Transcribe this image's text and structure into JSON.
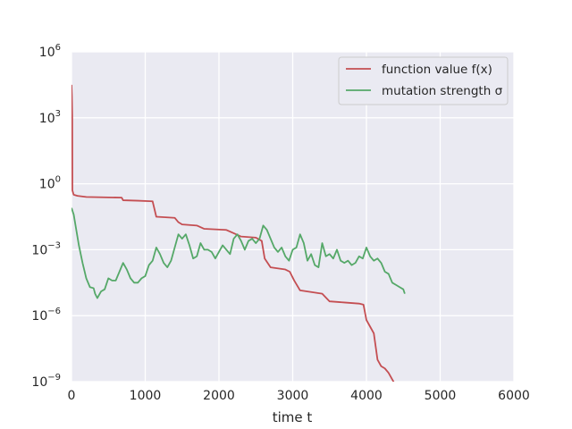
{
  "chart_data": {
    "type": "line",
    "title": "",
    "xlabel": "time t",
    "ylabel": "",
    "xlim": [
      0,
      6000
    ],
    "ylim_log10": [
      -9,
      6
    ],
    "yscale": "log",
    "grid": true,
    "legend_position": "top-right",
    "x_ticks": [
      {
        "value": 0,
        "label": "0"
      },
      {
        "value": 1000,
        "label": "1000"
      },
      {
        "value": 2000,
        "label": "2000"
      },
      {
        "value": 3000,
        "label": "3000"
      },
      {
        "value": 4000,
        "label": "4000"
      },
      {
        "value": 5000,
        "label": "5000"
      },
      {
        "value": 6000,
        "label": "6000"
      }
    ],
    "y_ticks": [
      {
        "exp": -9,
        "base": "10",
        "sup": "−9"
      },
      {
        "exp": -6,
        "base": "10",
        "sup": "−6"
      },
      {
        "exp": -3,
        "base": "10",
        "sup": "−3"
      },
      {
        "exp": 0,
        "base": "10",
        "sup": "0"
      },
      {
        "exp": 3,
        "base": "10",
        "sup": "3"
      },
      {
        "exp": 6,
        "base": "10",
        "sup": "6"
      }
    ],
    "series": [
      {
        "name": "function value f(x)",
        "color": "#c44e52",
        "points": [
          [
            0,
            4.5
          ],
          [
            5,
            4.0
          ],
          [
            10,
            3.0
          ],
          [
            12,
            -0.3
          ],
          [
            25,
            -0.45
          ],
          [
            30,
            -0.5
          ],
          [
            80,
            -0.55
          ],
          [
            200,
            -0.6
          ],
          [
            500,
            -0.62
          ],
          [
            680,
            -0.63
          ],
          [
            700,
            -0.75
          ],
          [
            900,
            -0.77
          ],
          [
            1100,
            -0.8
          ],
          [
            1150,
            -1.5
          ],
          [
            1400,
            -1.55
          ],
          [
            1450,
            -1.75
          ],
          [
            1500,
            -1.85
          ],
          [
            1700,
            -1.9
          ],
          [
            1800,
            -2.05
          ],
          [
            2100,
            -2.1
          ],
          [
            2200,
            -2.25
          ],
          [
            2300,
            -2.4
          ],
          [
            2500,
            -2.45
          ],
          [
            2580,
            -2.6
          ],
          [
            2620,
            -3.4
          ],
          [
            2700,
            -3.8
          ],
          [
            2900,
            -3.9
          ],
          [
            2960,
            -4.0
          ],
          [
            3020,
            -4.4
          ],
          [
            3100,
            -4.85
          ],
          [
            3400,
            -5.0
          ],
          [
            3500,
            -5.35
          ],
          [
            3700,
            -5.4
          ],
          [
            3900,
            -5.45
          ],
          [
            3960,
            -5.5
          ],
          [
            4000,
            -6.2
          ],
          [
            4050,
            -6.5
          ],
          [
            4100,
            -6.8
          ],
          [
            4150,
            -8.0
          ],
          [
            4200,
            -8.3
          ],
          [
            4250,
            -8.4
          ],
          [
            4300,
            -8.6
          ],
          [
            4350,
            -8.9
          ],
          [
            4400,
            -9.2
          ],
          [
            4500,
            -9.6
          ],
          [
            4520,
            -9.8
          ]
        ]
      },
      {
        "name": "mutation strength σ",
        "color": "#55a868",
        "points": [
          [
            0,
            -1.1
          ],
          [
            30,
            -1.4
          ],
          [
            100,
            -2.8
          ],
          [
            150,
            -3.6
          ],
          [
            200,
            -4.3
          ],
          [
            250,
            -4.7
          ],
          [
            300,
            -4.75
          ],
          [
            320,
            -5.0
          ],
          [
            350,
            -5.2
          ],
          [
            400,
            -4.9
          ],
          [
            450,
            -4.8
          ],
          [
            500,
            -4.3
          ],
          [
            550,
            -4.4
          ],
          [
            600,
            -4.4
          ],
          [
            650,
            -4.0
          ],
          [
            700,
            -3.6
          ],
          [
            750,
            -3.9
          ],
          [
            800,
            -4.3
          ],
          [
            850,
            -4.5
          ],
          [
            900,
            -4.5
          ],
          [
            950,
            -4.3
          ],
          [
            1000,
            -4.2
          ],
          [
            1050,
            -3.7
          ],
          [
            1100,
            -3.5
          ],
          [
            1150,
            -2.9
          ],
          [
            1200,
            -3.2
          ],
          [
            1250,
            -3.6
          ],
          [
            1300,
            -3.8
          ],
          [
            1350,
            -3.5
          ],
          [
            1400,
            -2.9
          ],
          [
            1450,
            -2.3
          ],
          [
            1500,
            -2.5
          ],
          [
            1550,
            -2.3
          ],
          [
            1600,
            -2.8
          ],
          [
            1650,
            -3.4
          ],
          [
            1700,
            -3.3
          ],
          [
            1750,
            -2.7
          ],
          [
            1800,
            -3.0
          ],
          [
            1850,
            -3.0
          ],
          [
            1900,
            -3.1
          ],
          [
            1950,
            -3.4
          ],
          [
            2000,
            -3.1
          ],
          [
            2050,
            -2.8
          ],
          [
            2100,
            -3.0
          ],
          [
            2150,
            -3.2
          ],
          [
            2200,
            -2.5
          ],
          [
            2250,
            -2.3
          ],
          [
            2300,
            -2.6
          ],
          [
            2350,
            -3.0
          ],
          [
            2400,
            -2.6
          ],
          [
            2450,
            -2.5
          ],
          [
            2500,
            -2.7
          ],
          [
            2550,
            -2.5
          ],
          [
            2600,
            -1.9
          ],
          [
            2650,
            -2.1
          ],
          [
            2700,
            -2.5
          ],
          [
            2750,
            -2.9
          ],
          [
            2800,
            -3.1
          ],
          [
            2850,
            -2.9
          ],
          [
            2900,
            -3.3
          ],
          [
            2950,
            -3.5
          ],
          [
            3000,
            -3.0
          ],
          [
            3050,
            -2.9
          ],
          [
            3100,
            -2.3
          ],
          [
            3150,
            -2.7
          ],
          [
            3200,
            -3.5
          ],
          [
            3250,
            -3.2
          ],
          [
            3300,
            -3.7
          ],
          [
            3350,
            -3.8
          ],
          [
            3400,
            -2.7
          ],
          [
            3450,
            -3.3
          ],
          [
            3500,
            -3.2
          ],
          [
            3550,
            -3.4
          ],
          [
            3600,
            -3.0
          ],
          [
            3650,
            -3.5
          ],
          [
            3700,
            -3.6
          ],
          [
            3750,
            -3.5
          ],
          [
            3800,
            -3.7
          ],
          [
            3850,
            -3.6
          ],
          [
            3900,
            -3.3
          ],
          [
            3950,
            -3.4
          ],
          [
            4000,
            -2.9
          ],
          [
            4050,
            -3.3
          ],
          [
            4100,
            -3.5
          ],
          [
            4150,
            -3.4
          ],
          [
            4200,
            -3.6
          ],
          [
            4250,
            -4.0
          ],
          [
            4300,
            -4.1
          ],
          [
            4350,
            -4.5
          ],
          [
            4400,
            -4.6
          ],
          [
            4450,
            -4.7
          ],
          [
            4500,
            -4.8
          ],
          [
            4520,
            -5.0
          ]
        ]
      }
    ],
    "legend": [
      {
        "label": "function value f(x)",
        "color": "#c44e52"
      },
      {
        "label": "mutation strength σ",
        "color": "#55a868"
      }
    ]
  }
}
